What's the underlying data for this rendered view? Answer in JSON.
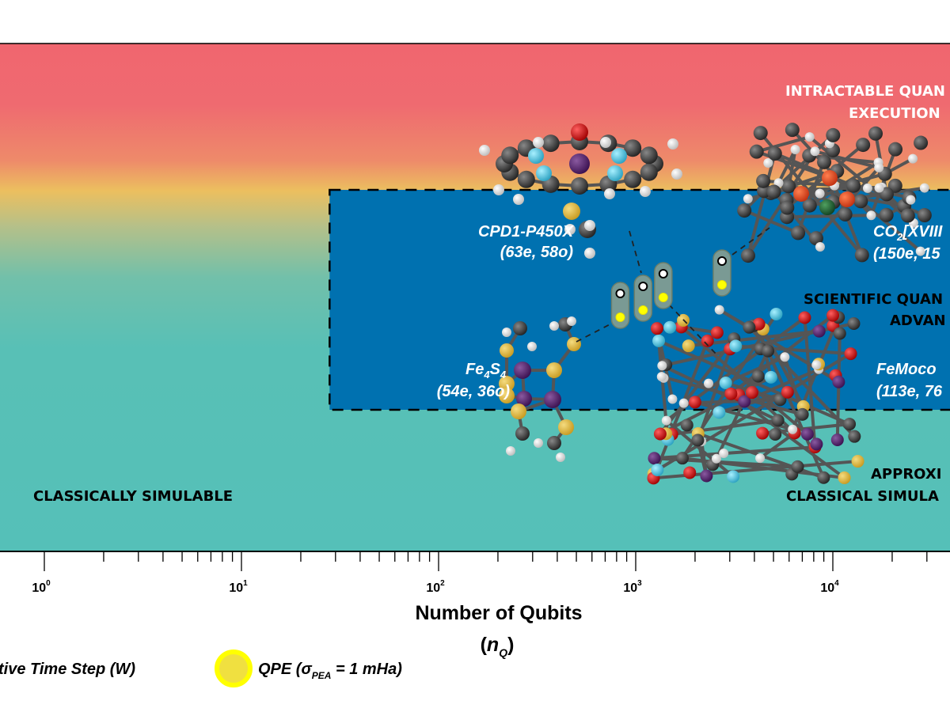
{
  "chart_data": {
    "type": "scatter",
    "xlabel": "Number of Qubits",
    "xlabel_symbol": "n",
    "xlabel_symbol_sub": "Q",
    "xscale": "log",
    "xlim": [
      0.8,
      100000
    ],
    "grid": false,
    "xticks": [
      {
        "value": 1,
        "base": "10",
        "exp": "0"
      },
      {
        "value": 10,
        "base": "10",
        "exp": "1"
      },
      {
        "value": 100,
        "base": "10",
        "exp": "2"
      },
      {
        "value": 1000,
        "base": "10",
        "exp": "3"
      },
      {
        "value": 10000,
        "base": "10",
        "exp": "4"
      }
    ],
    "regions": {
      "intractable": {
        "line1": "INTRACTABLE QUAN",
        "line2": "EXECUTION",
        "color": "#f0666f"
      },
      "advantage": {
        "line1": "SCIENTIFIC QUAN",
        "line2": "ADVAN",
        "color": "#0071b0",
        "x_start": 28
      },
      "approximate": {
        "line1": "APPROXI",
        "line2": "CLASSICAL SIMULA"
      },
      "classical": {
        "label": "CLASSICALLY SIMULABLE",
        "color": "#55c0b8"
      }
    },
    "systems": [
      {
        "name": "Fe",
        "sub1": "4",
        "name2": "S",
        "sub2": "4",
        "active_space": "(54e, 36o)",
        "qubits": 835
      },
      {
        "name": "CPD1-P450X",
        "active_space": "(63e, 58o)",
        "qubits": 1090
      },
      {
        "name": "FeMoco",
        "active_space": "(113e, 76",
        "qubits": 1380
      },
      {
        "name": "CO",
        "sub1": "2",
        "name2": "[XVIII",
        "active_space": "(150e, 15",
        "qubits": 2740
      }
    ],
    "legend": [
      {
        "label": "tive Time Step (W)",
        "marker": "white",
        "color": "#ffffff"
      },
      {
        "label_pre": "QPE (σ",
        "label_sub": "PEA",
        "label_post": " = 1 mHa)",
        "marker": "yellow",
        "color": "#ffff00"
      }
    ],
    "legend_placement": "bottom"
  }
}
